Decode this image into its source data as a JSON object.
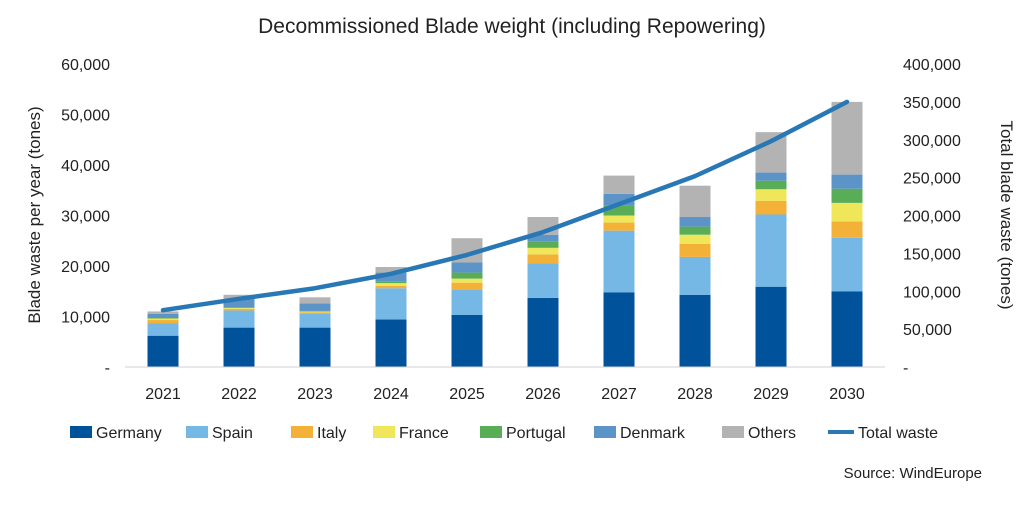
{
  "chart_data": {
    "type": "bar",
    "title": "Decommissioned Blade weight (including Repowering)",
    "categories": [
      "2021",
      "2022",
      "2023",
      "2024",
      "2025",
      "2026",
      "2027",
      "2028",
      "2029",
      "2030"
    ],
    "ylabel": "Blade waste per year (tones)",
    "y2label": "Total blade waste (tones)",
    "ylim": [
      0,
      60000
    ],
    "y2lim": [
      0,
      400000
    ],
    "yticks": [
      "-",
      "10,000",
      "20,000",
      "30,000",
      "40,000",
      "50,000",
      "60,000"
    ],
    "y2ticks": [
      "-",
      "50,000",
      "100,000",
      "150,000",
      "200,000",
      "250,000",
      "300,000",
      "350,000",
      "400,000"
    ],
    "stacked": true,
    "series": [
      {
        "name": "Germany",
        "color": "#00539b",
        "values": [
          6200,
          7800,
          7800,
          9400,
          10300,
          13700,
          14800,
          14300,
          15900,
          15000
        ]
      },
      {
        "name": "Spain",
        "color": "#75b8e6",
        "values": [
          2500,
          3400,
          2700,
          6200,
          5100,
          6800,
          12200,
          7500,
          14300,
          10600
        ]
      },
      {
        "name": "Italy",
        "color": "#f3b138",
        "values": [
          600,
          300,
          300,
          500,
          1300,
          1800,
          1600,
          2600,
          2700,
          3200
        ]
      },
      {
        "name": "France",
        "color": "#f0e65a",
        "values": [
          300,
          200,
          200,
          500,
          800,
          1300,
          1400,
          1800,
          2300,
          3700
        ]
      },
      {
        "name": "Portugal",
        "color": "#5aad57",
        "values": [
          100,
          100,
          100,
          400,
          1200,
          1200,
          2000,
          1600,
          1700,
          2800
        ]
      },
      {
        "name": "Denmark",
        "color": "#5c94c8",
        "values": [
          800,
          1700,
          1500,
          1700,
          2000,
          1400,
          2300,
          1900,
          1600,
          2800
        ]
      },
      {
        "name": "Others",
        "color": "#b3b3b3",
        "values": [
          500,
          800,
          1200,
          1100,
          4800,
          3500,
          3600,
          6200,
          8000,
          14400
        ]
      }
    ],
    "line": {
      "name": "Total waste",
      "color": "#2778b4",
      "axis": "right",
      "values": [
        75000,
        90000,
        104000,
        123000,
        148000,
        178000,
        215000,
        252000,
        298000,
        350000
      ]
    },
    "legend_position": "bottom",
    "grid": false,
    "source": "Source: WindEurope"
  }
}
